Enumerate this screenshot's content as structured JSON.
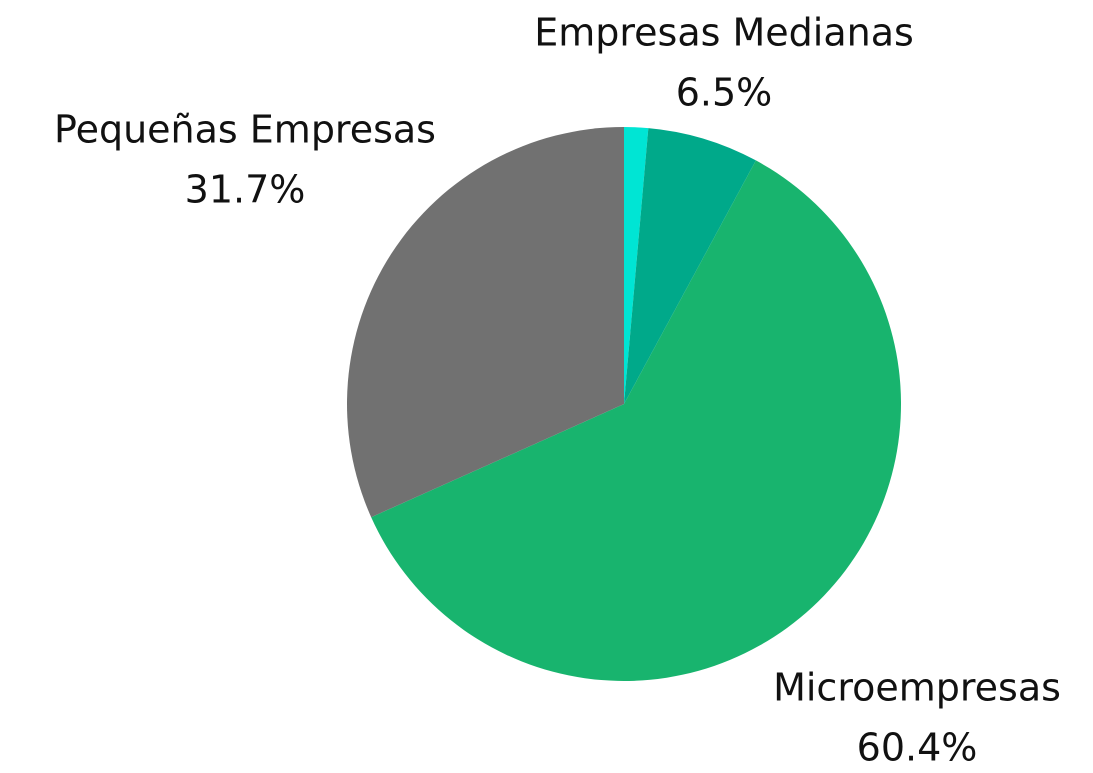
{
  "chart_data": {
    "type": "pie",
    "categories": [
      null,
      "Empresas Medianas",
      "Microempresas",
      "Pequeñas Empresas"
    ],
    "values": [
      1.4,
      6.5,
      60.4,
      31.7
    ],
    "value_labels": [
      null,
      "6.5%",
      "60.4%",
      "31.7%"
    ],
    "colors": [
      "#00e5d4",
      "#00a98a",
      "#18b46e",
      "#717171"
    ]
  }
}
